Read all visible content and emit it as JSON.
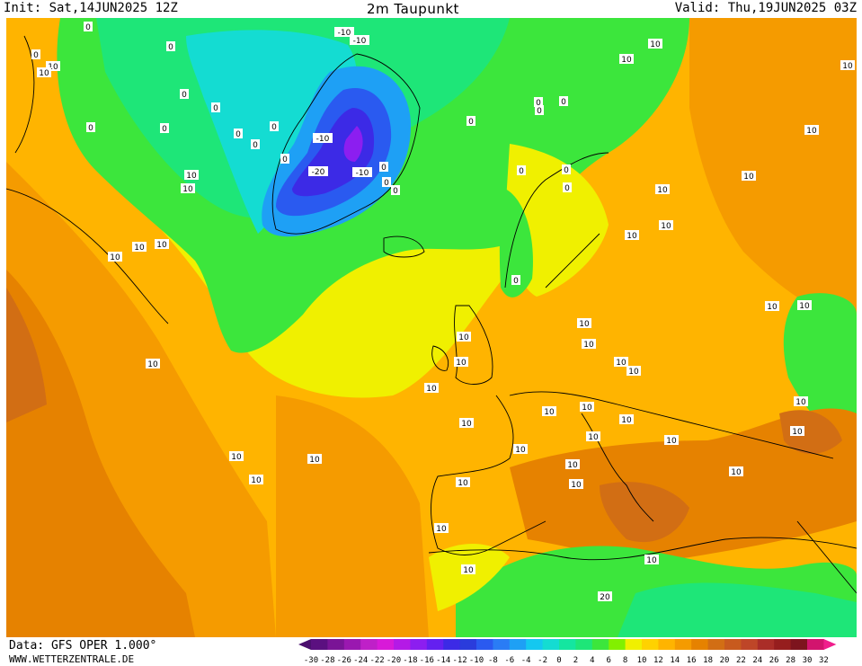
{
  "header": {
    "init": "Init: Sat,14JUN2025 12Z",
    "title": "2m Taupunkt",
    "valid": "Valid: Thu,19JUN2025 03Z"
  },
  "footer": {
    "data_source": "Data: GFS OPER 1.000°",
    "website": "WWW.WETTERZENTRALE.DE"
  },
  "legend": {
    "ticks": [
      "-30",
      "-28",
      "-26",
      "-24",
      "-22",
      "-20",
      "-18",
      "-16",
      "-14",
      "-12",
      "-10",
      "-8",
      "-6",
      "-4",
      "-2",
      "0",
      "2",
      "4",
      "6",
      "8",
      "10",
      "12",
      "14",
      "16",
      "18",
      "20",
      "22",
      "24",
      "26",
      "28",
      "30",
      "32"
    ],
    "colors": [
      "#4b0f6e",
      "#5b1080",
      "#7a1496",
      "#9a18b0",
      "#bf20c8",
      "#d81ad8",
      "#b41ae6",
      "#8c1ef0",
      "#6420f0",
      "#3c2ae6",
      "#2a3cdc",
      "#2a5af0",
      "#2a7cf5",
      "#1ea0f5",
      "#14c8f0",
      "#14dcd2",
      "#14e6a0",
      "#1ee678",
      "#3ce63c",
      "#82f000",
      "#f0f000",
      "#ffd200",
      "#ffb400",
      "#f59b00",
      "#e68200",
      "#d26e14",
      "#c85a1e",
      "#be4628",
      "#aa2d28",
      "#961e1e",
      "#7d141e",
      "#d2146e",
      "#f01e8c"
    ]
  },
  "contour_labels": [
    "-10",
    "-10",
    "-10",
    "-20",
    "-10",
    "0",
    "0",
    "0",
    "0",
    "0",
    "0",
    "0",
    "0",
    "0",
    "0",
    "0",
    "0",
    "0",
    "0",
    "0",
    "0",
    "0",
    "0",
    "0",
    "0",
    "0",
    "0",
    "10",
    "10",
    "10",
    "10",
    "10",
    "10",
    "10",
    "10",
    "10",
    "10",
    "10",
    "10",
    "10",
    "10",
    "10",
    "10",
    "10",
    "10",
    "10",
    "10",
    "10",
    "10",
    "10",
    "10",
    "10",
    "10",
    "10",
    "10",
    "10",
    "10",
    "10",
    "10",
    "10",
    "10",
    "10",
    "10",
    "10",
    "10",
    "10",
    "10",
    "10",
    "10",
    "10",
    "10",
    "20"
  ]
}
